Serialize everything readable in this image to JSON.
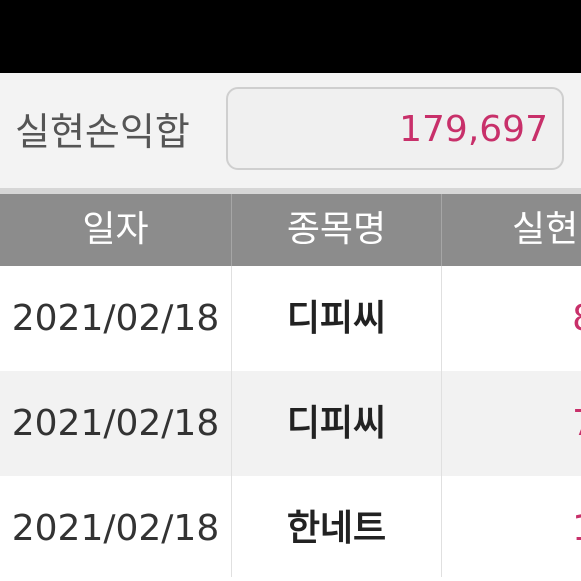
{
  "summary": {
    "label": "실현손익합",
    "value": "179,697"
  },
  "table": {
    "headers": [
      "일자",
      "종목명",
      "실현"
    ],
    "rows": [
      {
        "date": "2021/02/18",
        "name": "디피씨",
        "pnl": "8"
      },
      {
        "date": "2021/02/18",
        "name": "디피씨",
        "pnl": "7"
      },
      {
        "date": "2021/02/18",
        "name": "한네트",
        "pnl": "1"
      }
    ]
  },
  "colors": {
    "accent": "#c8306a",
    "header_bg": "#8c8c8c",
    "top_bar": "#000000"
  }
}
